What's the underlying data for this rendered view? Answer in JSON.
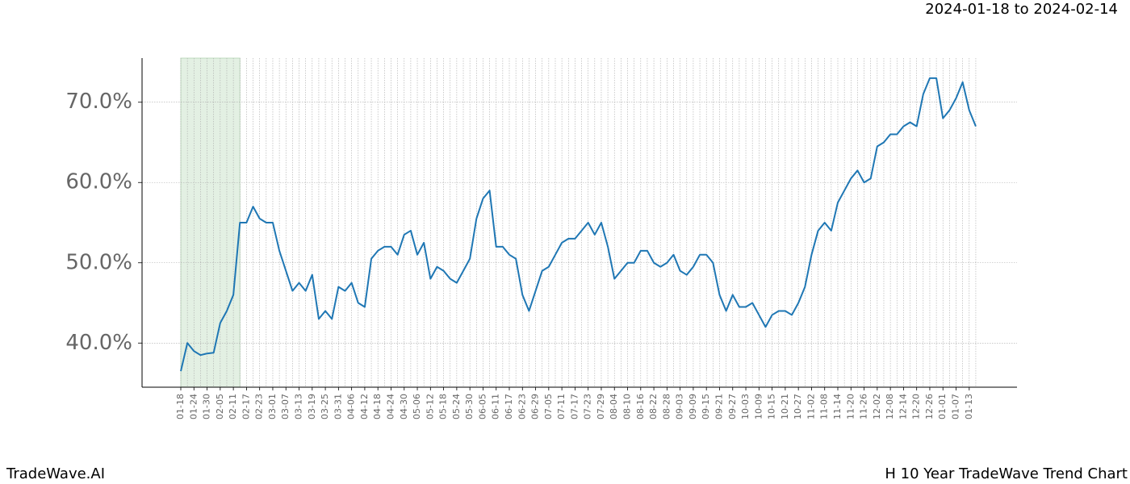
{
  "chart_data": {
    "type": "line",
    "subtitle": "2024-01-18 to 2024-02-14",
    "footer_left": "TradeWave.AI",
    "footer_right": "H 10 Year TradeWave Trend Chart",
    "categories": [
      "01-18",
      null,
      "01-24",
      null,
      "01-30",
      null,
      "02-05",
      null,
      "02-11",
      null,
      "02-17",
      null,
      "02-23",
      null,
      "03-01",
      null,
      "03-07",
      null,
      "03-13",
      null,
      "03-19",
      null,
      "03-25",
      null,
      "03-31",
      null,
      "04-06",
      null,
      "04-12",
      null,
      "04-18",
      null,
      "04-24",
      null,
      "04-30",
      null,
      "05-06",
      null,
      "05-12",
      null,
      "05-18",
      null,
      "05-24",
      null,
      "05-30",
      null,
      "06-05",
      null,
      "06-11",
      null,
      "06-17",
      null,
      "06-23",
      null,
      "06-29",
      null,
      "07-05",
      null,
      "07-11",
      null,
      "07-17",
      null,
      "07-23",
      null,
      "07-29",
      null,
      "08-04",
      null,
      "08-10",
      null,
      "08-16",
      null,
      "08-22",
      null,
      "08-28",
      null,
      "09-03",
      null,
      "09-09",
      null,
      "09-15",
      null,
      "09-21",
      null,
      "09-27",
      null,
      "10-03",
      null,
      "10-09",
      null,
      "10-15",
      null,
      "10-21",
      null,
      "10-27",
      null,
      "11-02",
      null,
      "11-08",
      null,
      "11-14",
      null,
      "11-20",
      null,
      "11-26",
      null,
      "12-02",
      null,
      "12-08",
      null,
      "12-14",
      null,
      "12-20",
      null,
      "12-26",
      null,
      "01-01",
      null,
      "01-07",
      null,
      "01-13",
      null
    ],
    "series": [
      {
        "name": "H",
        "color": "#1f77b4",
        "values": [
          36.5,
          40.0,
          39.0,
          38.5,
          38.7,
          38.8,
          42.5,
          44.0,
          46.0,
          55.0,
          55.0,
          57.0,
          55.5,
          55.0,
          55.0,
          51.5,
          49.0,
          46.5,
          47.5,
          46.5,
          48.5,
          43.0,
          44.0,
          43.0,
          47.0,
          46.5,
          47.5,
          45.0,
          44.5,
          50.5,
          51.5,
          52.0,
          52.0,
          51.0,
          53.5,
          54.0,
          51.0,
          52.5,
          48.0,
          49.5,
          49.0,
          48.0,
          47.5,
          49.0,
          50.5,
          55.5,
          58.0,
          59.0,
          52.0,
          52.0,
          51.0,
          50.5,
          46.0,
          44.0,
          46.5,
          49.0,
          49.5,
          51.0,
          52.5,
          53.0,
          53.0,
          54.0,
          55.0,
          53.5,
          55.0,
          52.0,
          48.0,
          49.0,
          50.0,
          50.0,
          51.5,
          51.5,
          50.0,
          49.5,
          50.0,
          51.0,
          49.0,
          48.5,
          49.5,
          51.0,
          51.0,
          50.0,
          46.0,
          44.0,
          46.0,
          44.5,
          44.5,
          45.0,
          43.5,
          42.0,
          43.5,
          44.0,
          44.0,
          43.5,
          45.0,
          47.0,
          51.0,
          54.0,
          55.0,
          54.0,
          57.5,
          59.0,
          60.5,
          61.5,
          60.0,
          60.5,
          64.5,
          65.0,
          66.0,
          66.0,
          67.0,
          67.5,
          67.0,
          71.0,
          73.0,
          73.0,
          68.0,
          69.0,
          70.5,
          72.5,
          69.0,
          67.0
        ]
      }
    ],
    "ylim": [
      34.5,
      75.5
    ],
    "yticks": [
      {
        "value": 40,
        "label": "40.0%"
      },
      {
        "value": 50,
        "label": "50.0%"
      },
      {
        "value": 60,
        "label": "60.0%"
      },
      {
        "value": 70,
        "label": "70.0%"
      }
    ],
    "grid": true,
    "shaded_span": [
      0,
      9
    ],
    "shade_color": "#e3f0e3"
  }
}
